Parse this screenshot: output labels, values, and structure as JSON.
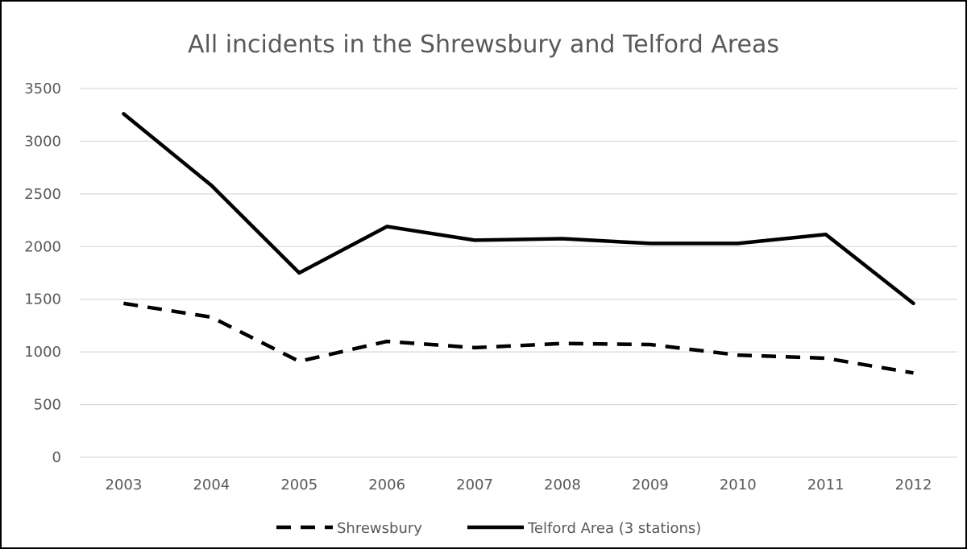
{
  "chart_data": {
    "type": "line",
    "title": "All incidents in the Shrewsbury and Telford Areas",
    "xlabel": "",
    "ylabel": "",
    "categories": [
      "2003",
      "2004",
      "2005",
      "2006",
      "2007",
      "2008",
      "2009",
      "2010",
      "2011",
      "2012"
    ],
    "series": [
      {
        "name": "Shrewsbury",
        "style": "dashed",
        "color": "#000000",
        "values": [
          1460,
          1330,
          910,
          1100,
          1040,
          1080,
          1070,
          970,
          940,
          800
        ]
      },
      {
        "name": "Telford Area (3 stations)",
        "style": "solid",
        "color": "#000000",
        "values": [
          3260,
          2580,
          1750,
          2190,
          2060,
          2075,
          2030,
          2030,
          2115,
          1460
        ]
      }
    ],
    "ylim": [
      0,
      3500
    ],
    "yticks": [
      0,
      500,
      1000,
      1500,
      2000,
      2500,
      3000,
      3500
    ],
    "grid": "horizontal",
    "legend_position": "bottom",
    "colors": {
      "gridline": "#d9d9d9",
      "text": "#595959"
    }
  }
}
